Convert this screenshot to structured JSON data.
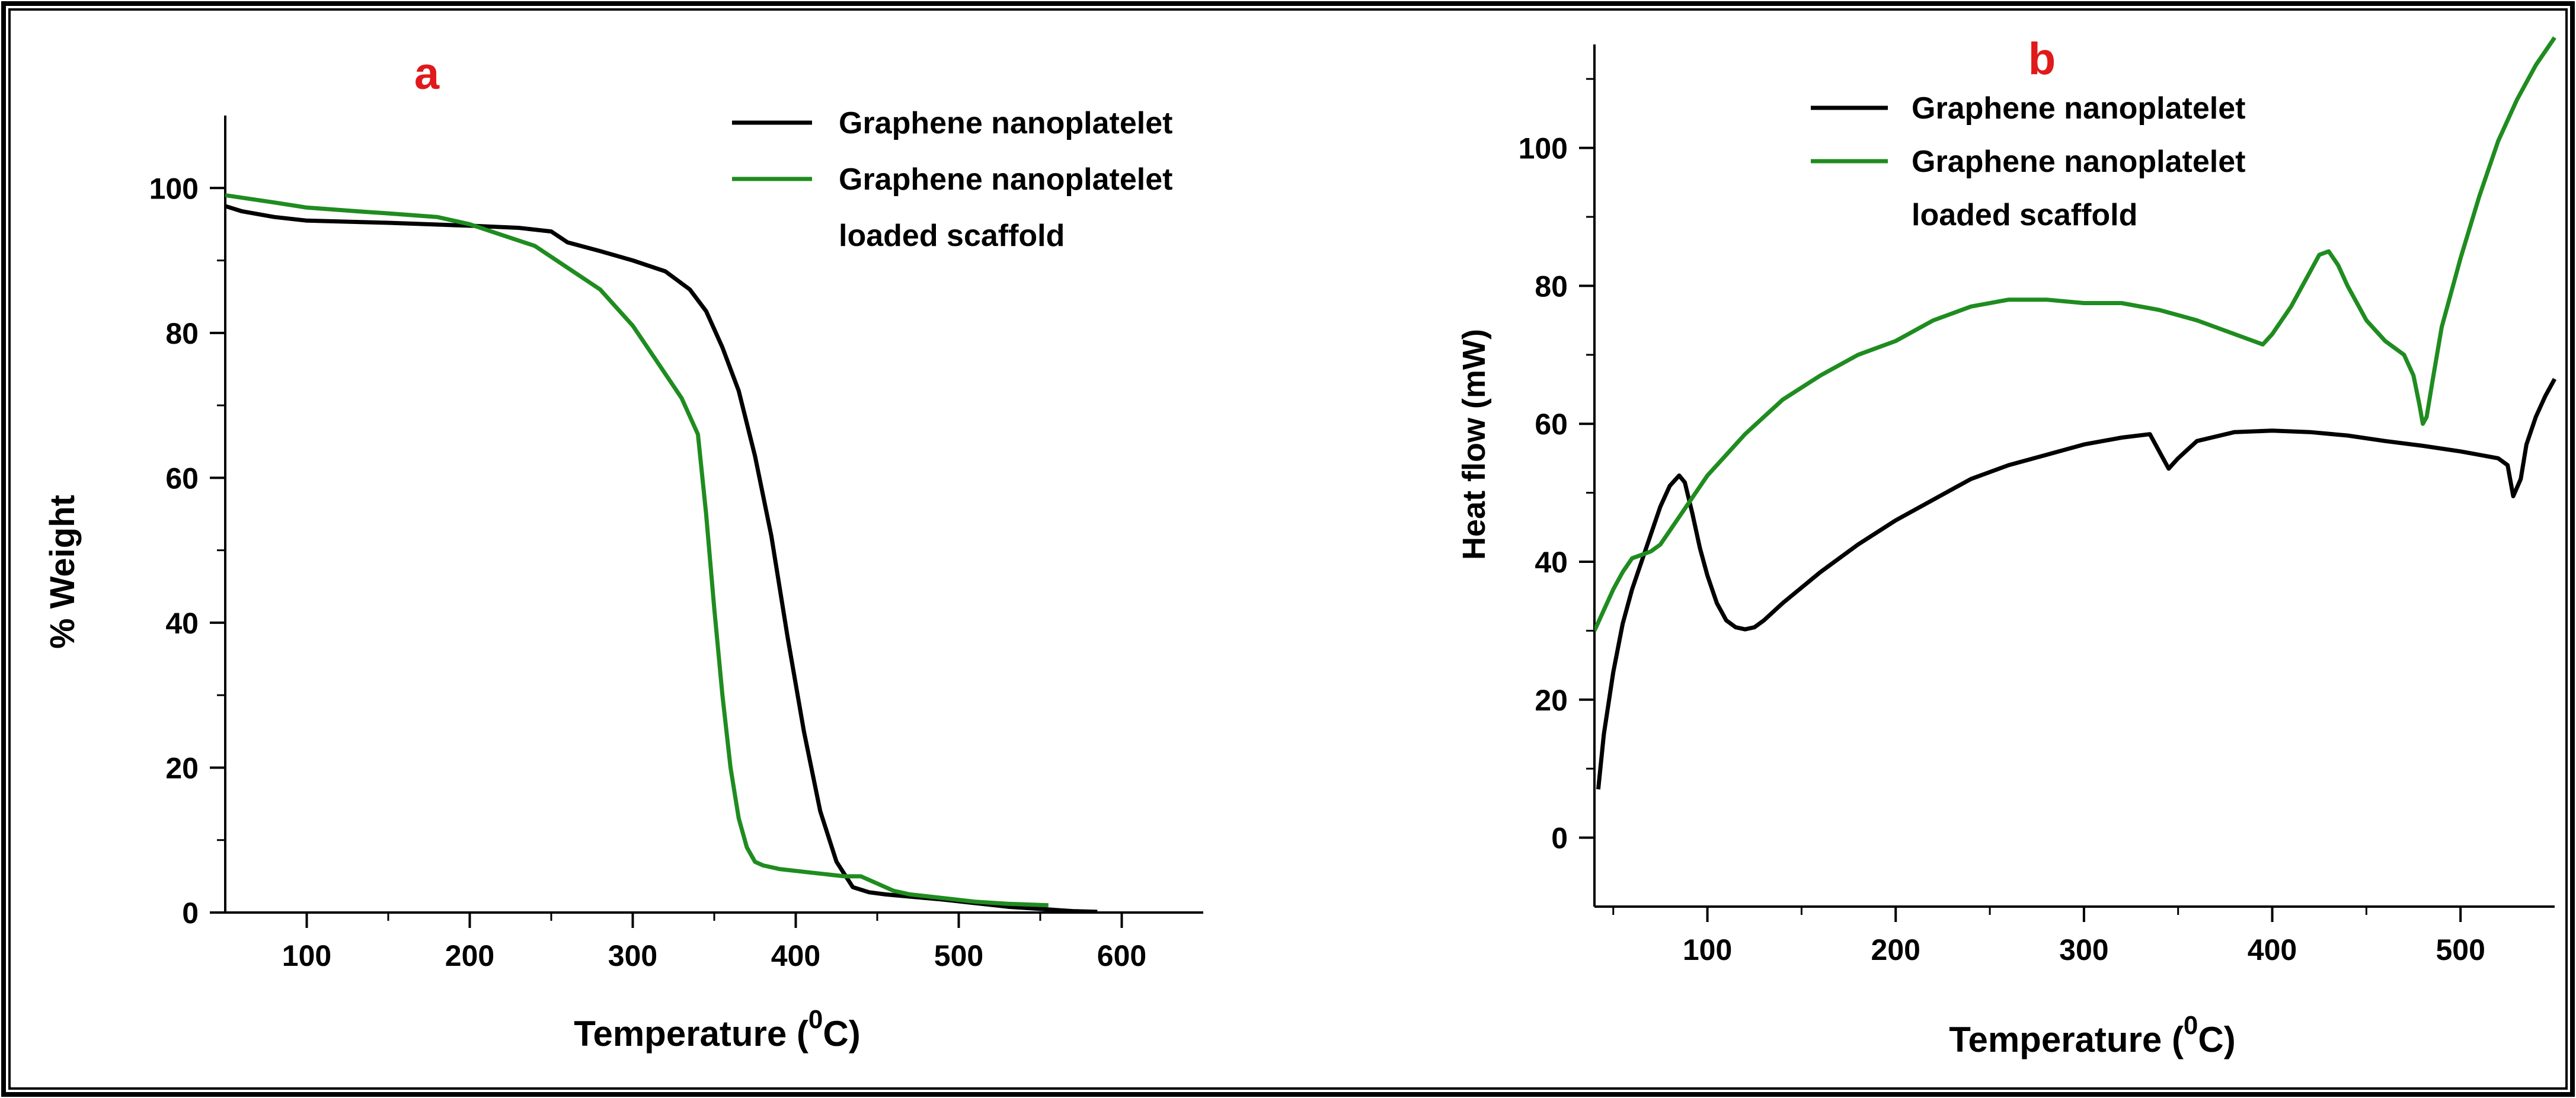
{
  "chart_data": [
    {
      "panel": "a",
      "type": "line",
      "panel_label": "a",
      "title": "",
      "xlabel": "Temperature (",
      "xlabel_sup": "0",
      "xlabel_unit": "C)",
      "ylabel": "% Weight",
      "xlim": [
        50,
        650
      ],
      "ylim": [
        0,
        110
      ],
      "xticks": [
        100,
        200,
        300,
        400,
        500,
        600
      ],
      "yticks": [
        0,
        20,
        40,
        60,
        80,
        100
      ],
      "legend": {
        "position": "top-right"
      },
      "series": [
        {
          "name": "Graphene nanoplatelet",
          "color": "#000000",
          "legend_lines": [
            "Graphene nanoplatelet"
          ],
          "x": [
            50,
            60,
            80,
            100,
            150,
            200,
            230,
            250,
            260,
            280,
            300,
            320,
            335,
            345,
            355,
            365,
            375,
            385,
            395,
            405,
            415,
            425,
            435,
            445,
            455,
            470,
            490,
            510,
            530,
            550,
            570,
            585
          ],
          "y": [
            97.5,
            96.8,
            96,
            95.5,
            95.2,
            94.8,
            94.5,
            94,
            92.5,
            91.3,
            90,
            88.5,
            86,
            83,
            78,
            72,
            63,
            52,
            38,
            25,
            14,
            7,
            3.5,
            2.8,
            2.5,
            2.2,
            1.8,
            1.3,
            0.8,
            0.5,
            0.2,
            0.1
          ]
        },
        {
          "name": "Graphene nanoplatelet loaded scaffold",
          "color": "#1f8c1f",
          "legend_lines": [
            "Graphene nanoplatelet",
            "loaded scaffold"
          ],
          "x": [
            50,
            80,
            100,
            130,
            150,
            180,
            200,
            220,
            240,
            260,
            280,
            300,
            315,
            330,
            340,
            345,
            350,
            355,
            360,
            365,
            370,
            375,
            380,
            390,
            410,
            430,
            440,
            450,
            460,
            470,
            490,
            510,
            530,
            555
          ],
          "y": [
            99,
            98,
            97.3,
            96.8,
            96.5,
            96,
            95,
            93.5,
            92,
            89,
            86,
            81,
            76,
            71,
            66,
            55,
            42,
            30,
            20,
            13,
            9,
            7,
            6.5,
            6,
            5.5,
            5,
            5,
            4,
            3,
            2.5,
            2,
            1.5,
            1.2,
            1
          ]
        }
      ]
    },
    {
      "panel": "b",
      "type": "line",
      "panel_label": "b",
      "title": "",
      "xlabel": "Temperature (",
      "xlabel_sup": "0",
      "xlabel_unit": "C)",
      "ylabel": "Heat flow (mW)",
      "xlim": [
        40,
        550
      ],
      "ylim": [
        -10,
        115
      ],
      "xticks": [
        100,
        200,
        300,
        400,
        500
      ],
      "yticks": [
        0,
        20,
        40,
        60,
        80,
        100
      ],
      "legend": {
        "position": "top-left"
      },
      "series": [
        {
          "name": "Graphene nanoplatelet",
          "color": "#000000",
          "legend_lines": [
            "Graphene nanoplatelet"
          ],
          "x": [
            42,
            45,
            50,
            55,
            60,
            65,
            70,
            75,
            80,
            85,
            88,
            92,
            96,
            100,
            105,
            110,
            115,
            120,
            125,
            130,
            140,
            160,
            180,
            200,
            220,
            240,
            260,
            280,
            300,
            320,
            335,
            340,
            345,
            350,
            360,
            380,
            400,
            420,
            440,
            460,
            480,
            500,
            520,
            525,
            528,
            532,
            535,
            540,
            545,
            550
          ],
          "y": [
            7,
            15,
            24,
            31,
            36,
            40,
            44,
            48,
            51,
            52.5,
            51.5,
            47,
            42,
            38,
            34,
            31.5,
            30.5,
            30.2,
            30.5,
            31.5,
            34,
            38.5,
            42.5,
            46,
            49,
            52,
            54,
            55.5,
            57,
            58,
            58.5,
            56,
            53.5,
            55,
            57.5,
            58.8,
            59,
            58.8,
            58.3,
            57.5,
            56.8,
            56,
            55,
            54,
            49.5,
            52,
            57,
            61,
            64,
            66.5
          ]
        },
        {
          "name": "Graphene nanoplatelet loaded scaffold",
          "color": "#1f8c1f",
          "legend_lines": [
            "Graphene nanoplatelet",
            "loaded scaffold"
          ],
          "x": [
            40,
            45,
            50,
            55,
            60,
            65,
            70,
            75,
            80,
            90,
            100,
            120,
            140,
            160,
            180,
            200,
            220,
            240,
            260,
            280,
            300,
            320,
            340,
            360,
            380,
            390,
            395,
            400,
            410,
            420,
            425,
            430,
            435,
            440,
            450,
            460,
            470,
            475,
            478,
            480,
            482,
            485,
            490,
            500,
            510,
            520,
            530,
            540,
            550
          ],
          "y": [
            30,
            33,
            36,
            38.5,
            40.5,
            41,
            41.5,
            42.5,
            44.5,
            48.5,
            52.5,
            58.5,
            63.5,
            67,
            70,
            72,
            75,
            77,
            78,
            78,
            77.5,
            77.5,
            76.5,
            75,
            73,
            72,
            71.5,
            73,
            77,
            82,
            84.5,
            85,
            83,
            80,
            75,
            72,
            70,
            67,
            63,
            60,
            61,
            66,
            74,
            84,
            93,
            101,
            107,
            112,
            116
          ]
        }
      ]
    }
  ]
}
